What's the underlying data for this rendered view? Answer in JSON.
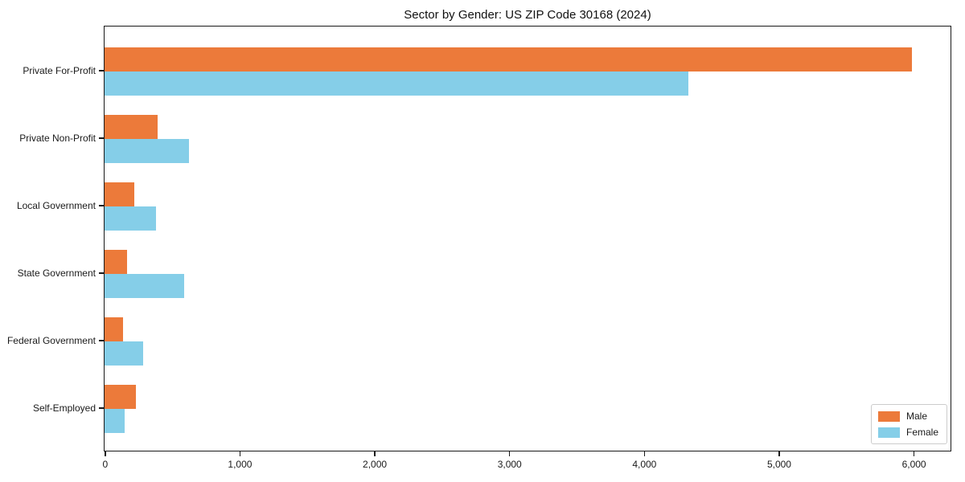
{
  "title": "Sector by Gender: US ZIP Code 30168 (2024)",
  "chart_data": {
    "type": "bar",
    "orientation": "horizontal",
    "title": "Sector by Gender: US ZIP Code 30168 (2024)",
    "categories": [
      "Private For-Profit",
      "Private Non-Profit",
      "Local Government",
      "State Government",
      "Federal Government",
      "Self-Employed"
    ],
    "series": [
      {
        "name": "Male",
        "color": "#EC7A3A",
        "values": [
          5990,
          395,
          220,
          170,
          135,
          235
        ]
      },
      {
        "name": "Female",
        "color": "#85CEE8",
        "values": [
          4330,
          625,
          380,
          590,
          285,
          150
        ]
      }
    ],
    "xlabel": "",
    "ylabel": "",
    "xlim": [
      0,
      6266
    ],
    "xticks": {
      "values": [
        0,
        1000,
        2000,
        3000,
        4000,
        5000,
        6000
      ],
      "labels": [
        "0",
        "1,000",
        "2,000",
        "3,000",
        "4,000",
        "5,000",
        "6,000"
      ]
    },
    "grid": false,
    "legend": {
      "position": "lower right",
      "entries": [
        {
          "label": "Male",
          "color": "#EC7A3A"
        },
        {
          "label": "Female",
          "color": "#85CEE8"
        }
      ]
    },
    "frame_color": "#1a1a1a"
  }
}
